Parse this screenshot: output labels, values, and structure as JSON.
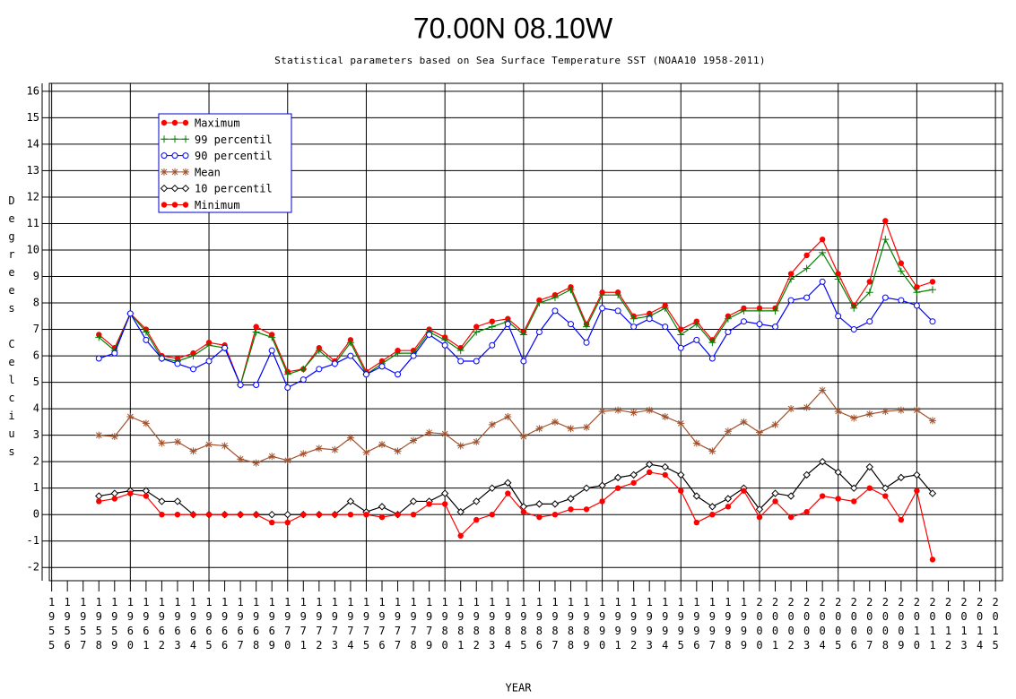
{
  "chart_data": {
    "type": "line",
    "title": "70.00N 08.10W",
    "subtitle": "Statistical parameters based on Sea Surface Temperature SST (NOAA10 1958-2011)",
    "x_label": "YEAR",
    "y_label": "Degrees Celcius",
    "x": [
      1958,
      1959,
      1960,
      1961,
      1962,
      1963,
      1964,
      1965,
      1966,
      1967,
      1968,
      1969,
      1970,
      1971,
      1972,
      1973,
      1974,
      1975,
      1976,
      1977,
      1978,
      1979,
      1980,
      1981,
      1982,
      1983,
      1984,
      1985,
      1986,
      1987,
      1988,
      1989,
      1990,
      1991,
      1992,
      1993,
      1994,
      1995,
      1996,
      1997,
      1998,
      1999,
      2000,
      2001,
      2002,
      2003,
      2004,
      2005,
      2006,
      2007,
      2008,
      2009,
      2010,
      2011
    ],
    "series": [
      {
        "name": "Maximum",
        "color": "#ff0000",
        "marker": "dot",
        "values": [
          6.8,
          6.3,
          7.6,
          7.0,
          6.0,
          5.9,
          6.1,
          6.5,
          6.4,
          4.9,
          7.1,
          6.8,
          5.4,
          5.5,
          6.3,
          5.8,
          6.6,
          5.4,
          5.8,
          6.2,
          6.2,
          7.0,
          6.7,
          6.3,
          7.1,
          7.3,
          7.4,
          6.9,
          8.1,
          8.3,
          8.6,
          7.2,
          8.4,
          8.4,
          7.5,
          7.6,
          7.9,
          7.0,
          7.3,
          6.6,
          7.5,
          7.8,
          7.8,
          7.8,
          9.1,
          9.8,
          10.4,
          9.1,
          7.9,
          8.8,
          11.1,
          9.5,
          8.6,
          8.8
        ]
      },
      {
        "name": "99 percentil",
        "color": "#008000",
        "marker": "plus",
        "values": [
          6.7,
          6.2,
          7.6,
          6.9,
          5.9,
          5.8,
          6.0,
          6.4,
          6.3,
          4.9,
          6.9,
          6.7,
          5.3,
          5.5,
          6.2,
          5.7,
          6.5,
          5.3,
          5.7,
          6.1,
          6.1,
          6.9,
          6.6,
          6.2,
          6.9,
          7.1,
          7.3,
          6.8,
          8.0,
          8.2,
          8.5,
          7.1,
          8.3,
          8.3,
          7.4,
          7.5,
          7.8,
          6.8,
          7.2,
          6.5,
          7.4,
          7.7,
          7.7,
          7.7,
          8.9,
          9.3,
          9.9,
          8.9,
          7.8,
          8.4,
          10.4,
          9.2,
          8.4,
          8.5
        ]
      },
      {
        "name": "90 percentil",
        "color": "#0000ff",
        "marker": "circle",
        "values": [
          5.9,
          6.1,
          7.6,
          6.6,
          5.9,
          5.7,
          5.5,
          5.8,
          6.3,
          4.9,
          4.9,
          6.2,
          4.8,
          5.1,
          5.5,
          5.7,
          6.0,
          5.3,
          5.6,
          5.3,
          6.0,
          6.8,
          6.4,
          5.8,
          5.8,
          6.4,
          7.2,
          5.8,
          6.9,
          7.7,
          7.2,
          6.5,
          7.8,
          7.7,
          7.1,
          7.4,
          7.1,
          6.3,
          6.6,
          5.9,
          6.9,
          7.3,
          7.2,
          7.1,
          8.1,
          8.2,
          8.8,
          7.5,
          7.0,
          7.3,
          8.2,
          8.1,
          7.9,
          7.3
        ]
      },
      {
        "name": "Mean",
        "color": "#a0522d",
        "marker": "star",
        "values": [
          3.0,
          2.95,
          3.7,
          3.45,
          2.7,
          2.75,
          2.4,
          2.65,
          2.6,
          2.1,
          1.95,
          2.2,
          2.05,
          2.3,
          2.5,
          2.45,
          2.9,
          2.35,
          2.65,
          2.4,
          2.8,
          3.1,
          3.05,
          2.6,
          2.75,
          3.4,
          3.7,
          2.95,
          3.25,
          3.5,
          3.25,
          3.3,
          3.9,
          3.95,
          3.85,
          3.95,
          3.7,
          3.45,
          2.7,
          2.4,
          3.15,
          3.5,
          3.1,
          3.4,
          4.0,
          4.05,
          4.7,
          3.9,
          3.65,
          3.8,
          3.9,
          3.95,
          3.95,
          3.55
        ]
      },
      {
        "name": "10 percentil",
        "color": "#000000",
        "marker": "diamond",
        "values": [
          0.7,
          0.8,
          0.9,
          0.9,
          0.5,
          0.5,
          0,
          0,
          0,
          0,
          0,
          0,
          0,
          0,
          0,
          0,
          0.5,
          0.1,
          0.3,
          0,
          0.5,
          0.5,
          0.8,
          0.1,
          0.5,
          1.0,
          1.2,
          0.3,
          0.4,
          0.4,
          0.6,
          1.0,
          1.1,
          1.4,
          1.5,
          1.9,
          1.8,
          1.5,
          0.7,
          0.3,
          0.6,
          1.0,
          0.2,
          0.8,
          0.7,
          1.5,
          2.0,
          1.6,
          1.0,
          1.8,
          1.0,
          1.4,
          1.5,
          0.8
        ]
      },
      {
        "name": "Minimum",
        "color": "#ff0000",
        "marker": "dot",
        "values": [
          0.5,
          0.6,
          0.8,
          0.7,
          0,
          0,
          0,
          0,
          0,
          0,
          0,
          -0.3,
          -0.3,
          0,
          0,
          0,
          0,
          0,
          -0.1,
          0,
          0,
          0.4,
          0.4,
          -0.8,
          -0.2,
          0,
          0.8,
          0.1,
          -0.1,
          0,
          0.2,
          0.2,
          0.5,
          1.0,
          1.2,
          1.6,
          1.5,
          0.9,
          -0.3,
          0,
          0.3,
          0.9,
          -0.1,
          0.5,
          -0.1,
          0.1,
          0.7,
          0.6,
          0.5,
          1.0,
          0.7,
          -0.2,
          0.9,
          -1.7
        ]
      }
    ],
    "xlim": [
      1954.85,
      2015.45
    ],
    "xticks": [
      1955,
      1956,
      1957,
      1958,
      1959,
      1960,
      1961,
      1962,
      1963,
      1964,
      1965,
      1966,
      1967,
      1968,
      1969,
      1970,
      1971,
      1972,
      1973,
      1974,
      1975,
      1976,
      1977,
      1978,
      1979,
      1980,
      1981,
      1982,
      1983,
      1984,
      1985,
      1986,
      1987,
      1988,
      1989,
      1990,
      1991,
      1992,
      1993,
      1994,
      1995,
      1996,
      1997,
      1998,
      1999,
      2000,
      2001,
      2002,
      2003,
      2004,
      2005,
      2006,
      2007,
      2008,
      2009,
      2010,
      2011,
      2012,
      2013,
      2014,
      2015
    ],
    "ylim": [
      -2.5,
      16.3
    ],
    "yticks": [
      -2,
      -1,
      0,
      1,
      2,
      3,
      4,
      5,
      6,
      7,
      8,
      9,
      10,
      11,
      12,
      13,
      14,
      15,
      16
    ],
    "grid": true,
    "legend": "upper left"
  }
}
